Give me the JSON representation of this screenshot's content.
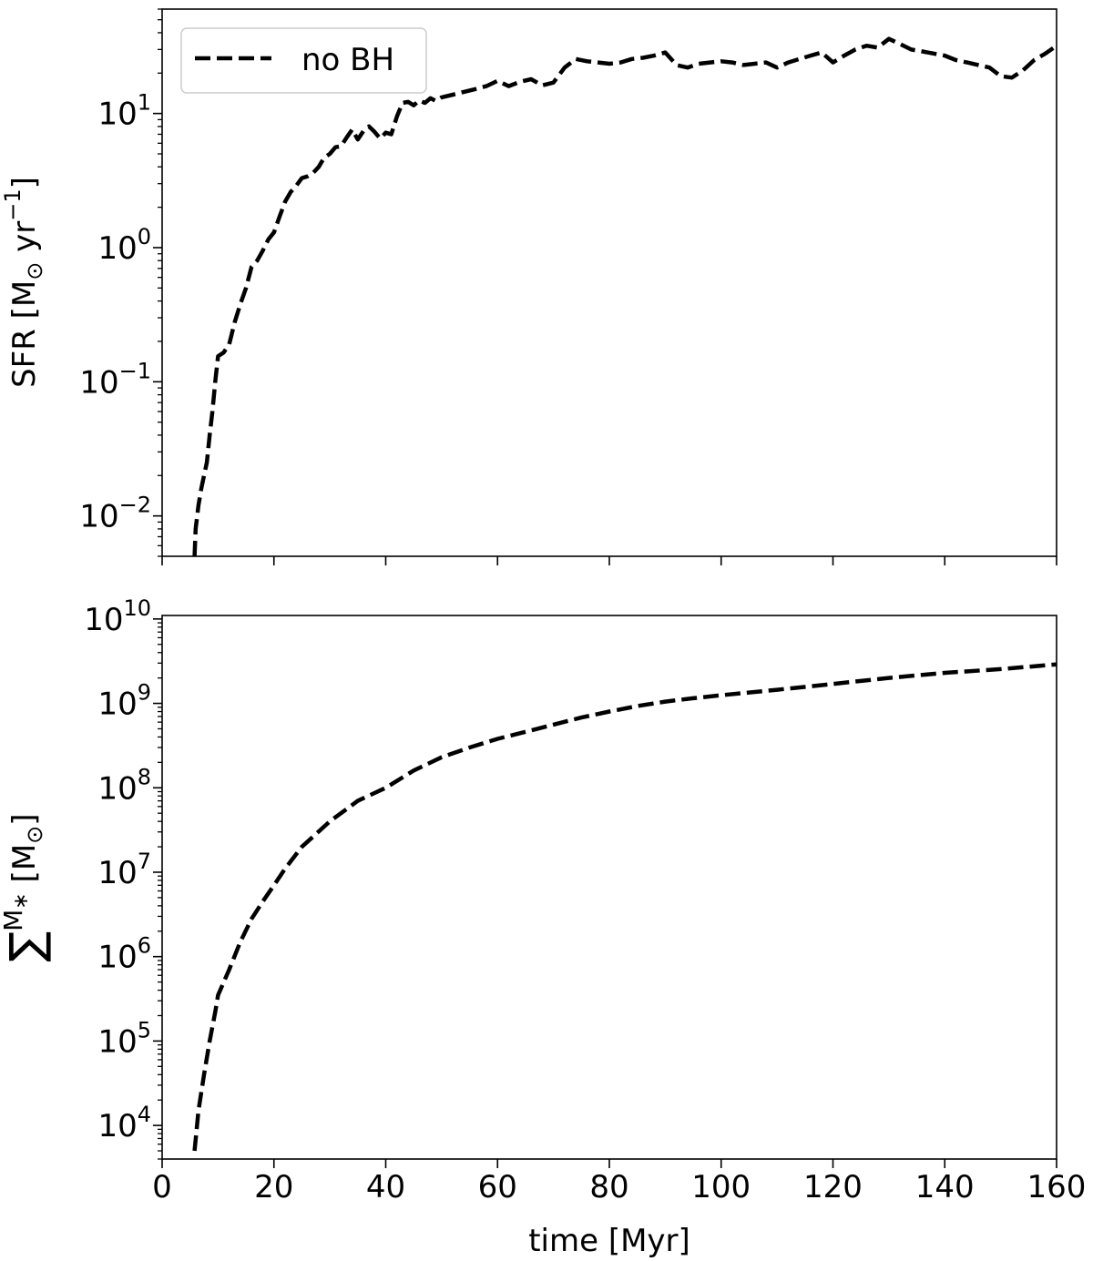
{
  "figure": {
    "xlabel": "time [Myr]"
  },
  "chart_data": [
    {
      "type": "line",
      "panel": "top",
      "ylabel": "SFR [M⊙ yr⁻¹]",
      "ylabel_parts": {
        "main": "SFR [M",
        "sub": "⊙",
        "mid": " yr",
        "sup": "−1",
        "end": "]"
      },
      "xlim": [
        0,
        160
      ],
      "ylim": [
        0.005,
        60
      ],
      "yscale": "log",
      "x_ticks": [
        0,
        20,
        40,
        60,
        80,
        100,
        120,
        140,
        160
      ],
      "y_ticks": [
        {
          "value": 0.01,
          "base": "10",
          "exp": "−2"
        },
        {
          "value": 0.1,
          "base": "10",
          "exp": "−1"
        },
        {
          "value": 1,
          "base": "10",
          "exp": "0"
        },
        {
          "value": 10,
          "base": "10",
          "exp": "1"
        }
      ],
      "grid": false,
      "legend": {
        "position": "top-left",
        "entries": [
          "no BH"
        ]
      },
      "series": [
        {
          "name": "no BH",
          "style": "dashed",
          "color": "#000000",
          "x": [
            5.8,
            6,
            6.5,
            7,
            7.5,
            8,
            8.5,
            9,
            9.5,
            10,
            11,
            12,
            13,
            14,
            15,
            16,
            17,
            18,
            19,
            20,
            21,
            22,
            23,
            24,
            25,
            26,
            27,
            28,
            29,
            30,
            31,
            32,
            33,
            34,
            35,
            36,
            37,
            38,
            39,
            40,
            41,
            42,
            43,
            44,
            45,
            46,
            47,
            48,
            49,
            50,
            52,
            54,
            56,
            58,
            60,
            62,
            64,
            66,
            68,
            70,
            72,
            74,
            76,
            78,
            80,
            82,
            84,
            86,
            88,
            90,
            92,
            94,
            96,
            98,
            100,
            102,
            104,
            106,
            108,
            110,
            112,
            114,
            116,
            118,
            120,
            122,
            124,
            126,
            128,
            130,
            132,
            134,
            136,
            138,
            140,
            142,
            144,
            146,
            148,
            150,
            152,
            154,
            156,
            158,
            160
          ],
          "y": [
            0.005,
            0.008,
            0.012,
            0.016,
            0.02,
            0.025,
            0.04,
            0.06,
            0.1,
            0.155,
            0.165,
            0.19,
            0.28,
            0.38,
            0.5,
            0.72,
            0.8,
            0.95,
            1.15,
            1.3,
            1.7,
            2.2,
            2.6,
            2.9,
            3.3,
            3.4,
            3.6,
            4.0,
            4.7,
            5.0,
            5.6,
            5.7,
            6.6,
            7.6,
            6.4,
            7.4,
            8.0,
            7.3,
            6.5,
            7.2,
            7.0,
            9.5,
            12.0,
            12.2,
            11.5,
            12.5,
            12.0,
            13.0,
            12.4,
            13.2,
            13.8,
            14.5,
            15.2,
            16.0,
            17.5,
            16.0,
            17.2,
            18.0,
            16.2,
            17.0,
            22.0,
            25.5,
            24.5,
            24.0,
            23.5,
            24.0,
            25.5,
            26.0,
            27.0,
            28.5,
            23.0,
            22.0,
            23.5,
            24.0,
            24.5,
            24.0,
            23.0,
            23.5,
            24.0,
            22.0,
            24.0,
            25.5,
            27.0,
            28.5,
            24.0,
            27.0,
            30.0,
            32.0,
            31.0,
            36.0,
            33.0,
            30.0,
            29.0,
            28.0,
            27.0,
            25.0,
            24.0,
            23.0,
            22.0,
            19.0,
            18.5,
            21.0,
            25.0,
            28.0,
            32.0
          ]
        }
      ]
    },
    {
      "type": "line",
      "panel": "bottom",
      "ylabel": "∑M∗ [M⊙]",
      "ylabel_parts": {
        "sum": "∑",
        "main": "M",
        "sub": "∗",
        "end": " [M",
        "sub2": "⊙",
        "close": "]"
      },
      "xlabel": "time [Myr]",
      "xlim": [
        0,
        160
      ],
      "ylim": [
        4000,
        11000000000
      ],
      "yscale": "log",
      "x_ticks": [
        0,
        20,
        40,
        60,
        80,
        100,
        120,
        140,
        160
      ],
      "y_ticks": [
        {
          "value": 10000,
          "base": "10",
          "exp": "4"
        },
        {
          "value": 100000,
          "base": "10",
          "exp": "5"
        },
        {
          "value": 1000000,
          "base": "10",
          "exp": "6"
        },
        {
          "value": 10000000,
          "base": "10",
          "exp": "7"
        },
        {
          "value": 100000000,
          "base": "10",
          "exp": "8"
        },
        {
          "value": 1000000000,
          "base": "10",
          "exp": "9"
        },
        {
          "value": 10000000000,
          "base": "10",
          "exp": "10"
        }
      ],
      "grid": false,
      "series": [
        {
          "style": "dashed",
          "color": "#000000",
          "x": [
            5.8,
            6.5,
            7.5,
            8.5,
            9.5,
            10,
            12,
            14,
            16,
            18,
            20,
            22,
            25,
            30,
            35,
            40,
            45,
            50,
            55,
            60,
            65,
            70,
            75,
            80,
            85,
            90,
            95,
            100,
            110,
            120,
            130,
            140,
            150,
            160
          ],
          "y": [
            5000,
            15000,
            40000,
            100000,
            220000,
            350000,
            700000,
            1500000,
            2800000,
            4500000,
            7000000,
            11000000,
            20000000,
            40000000,
            70000000,
            100000000,
            160000000,
            230000000,
            300000000,
            380000000,
            460000000,
            560000000,
            680000000,
            800000000,
            930000000,
            1050000000,
            1150000000,
            1250000000,
            1450000000,
            1700000000,
            2000000000,
            2300000000,
            2550000000,
            2900000000
          ]
        }
      ]
    }
  ]
}
